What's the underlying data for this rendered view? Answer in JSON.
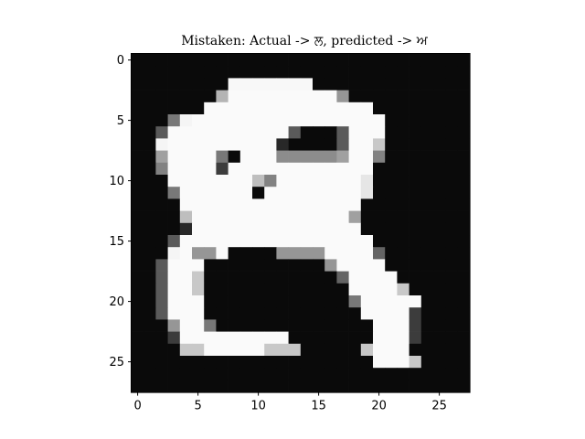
{
  "chart_data": {
    "type": "heatmap",
    "title": "Mistaken: Actual -> ਲ, predicted -> ਅ",
    "xlabel": "",
    "ylabel": "",
    "colormap": "gray",
    "value_range": [
      0,
      255
    ],
    "shape": [
      28,
      28
    ],
    "xlim": [
      -0.5,
      27.5
    ],
    "ylim": [
      27.5,
      -0.5
    ],
    "x_ticks": [
      0,
      5,
      10,
      15,
      20,
      25
    ],
    "y_ticks": [
      0,
      5,
      10,
      15,
      20,
      25
    ],
    "grid": false,
    "rows": [
      [
        10,
        10,
        10,
        10,
        10,
        10,
        10,
        10,
        10,
        10,
        10,
        10,
        10,
        10,
        10,
        10,
        10,
        10,
        10,
        10,
        10,
        10,
        10,
        10,
        10,
        10,
        10,
        10
      ],
      [
        10,
        10,
        10,
        10,
        10,
        10,
        10,
        10,
        10,
        10,
        10,
        10,
        10,
        10,
        10,
        10,
        10,
        10,
        10,
        10,
        10,
        10,
        10,
        10,
        10,
        10,
        10,
        10
      ],
      [
        10,
        10,
        10,
        10,
        10,
        10,
        10,
        10,
        248,
        248,
        248,
        248,
        248,
        248,
        248,
        10,
        10,
        10,
        10,
        10,
        10,
        10,
        10,
        10,
        10,
        10,
        10,
        10
      ],
      [
        10,
        10,
        10,
        10,
        10,
        10,
        10,
        180,
        250,
        250,
        250,
        250,
        250,
        250,
        250,
        250,
        250,
        150,
        10,
        10,
        10,
        10,
        10,
        10,
        10,
        10,
        10,
        10
      ],
      [
        10,
        10,
        10,
        10,
        10,
        10,
        250,
        250,
        250,
        250,
        250,
        250,
        250,
        250,
        250,
        250,
        250,
        250,
        250,
        250,
        10,
        10,
        10,
        10,
        10,
        10,
        10,
        10
      ],
      [
        10,
        10,
        10,
        120,
        245,
        250,
        250,
        250,
        250,
        250,
        250,
        250,
        250,
        250,
        250,
        250,
        250,
        250,
        250,
        250,
        250,
        10,
        10,
        10,
        10,
        10,
        10,
        10
      ],
      [
        10,
        10,
        90,
        250,
        250,
        250,
        250,
        250,
        250,
        250,
        250,
        250,
        250,
        90,
        10,
        10,
        10,
        90,
        250,
        250,
        250,
        10,
        10,
        10,
        10,
        10,
        10,
        10
      ],
      [
        10,
        10,
        245,
        250,
        250,
        250,
        250,
        250,
        250,
        250,
        250,
        250,
        40,
        10,
        10,
        10,
        10,
        90,
        250,
        250,
        200,
        10,
        10,
        10,
        10,
        10,
        10,
        10
      ],
      [
        10,
        10,
        160,
        250,
        250,
        250,
        250,
        120,
        10,
        250,
        250,
        250,
        140,
        140,
        140,
        140,
        140,
        160,
        250,
        250,
        130,
        10,
        10,
        10,
        10,
        10,
        10,
        10
      ],
      [
        10,
        10,
        130,
        250,
        250,
        250,
        250,
        60,
        250,
        250,
        250,
        250,
        250,
        250,
        250,
        250,
        250,
        250,
        250,
        250,
        10,
        10,
        10,
        10,
        10,
        10,
        10,
        10
      ],
      [
        10,
        10,
        10,
        250,
        250,
        250,
        250,
        250,
        250,
        250,
        190,
        130,
        250,
        250,
        250,
        250,
        250,
        250,
        250,
        230,
        10,
        10,
        10,
        10,
        10,
        10,
        10,
        10
      ],
      [
        10,
        10,
        10,
        120,
        250,
        250,
        250,
        250,
        250,
        250,
        10,
        250,
        250,
        250,
        250,
        250,
        250,
        250,
        250,
        230,
        10,
        10,
        10,
        10,
        10,
        10,
        10,
        10
      ],
      [
        10,
        10,
        10,
        10,
        250,
        250,
        250,
        250,
        250,
        250,
        250,
        250,
        250,
        250,
        250,
        250,
        250,
        250,
        250,
        10,
        10,
        10,
        10,
        10,
        10,
        10,
        10,
        10
      ],
      [
        10,
        10,
        10,
        10,
        190,
        250,
        250,
        250,
        250,
        250,
        250,
        250,
        250,
        250,
        250,
        250,
        250,
        250,
        160,
        10,
        10,
        10,
        10,
        10,
        10,
        10,
        10,
        10
      ],
      [
        10,
        10,
        10,
        10,
        40,
        250,
        250,
        250,
        250,
        250,
        250,
        250,
        250,
        250,
        250,
        250,
        250,
        250,
        250,
        10,
        10,
        10,
        10,
        10,
        10,
        10,
        10,
        10
      ],
      [
        10,
        10,
        10,
        90,
        250,
        250,
        250,
        250,
        250,
        250,
        250,
        250,
        250,
        250,
        250,
        250,
        250,
        250,
        250,
        250,
        10,
        10,
        10,
        10,
        10,
        10,
        10,
        10
      ],
      [
        10,
        10,
        10,
        245,
        250,
        150,
        150,
        250,
        10,
        10,
        10,
        10,
        150,
        150,
        150,
        150,
        250,
        250,
        250,
        250,
        100,
        10,
        10,
        10,
        10,
        10,
        10,
        10
      ],
      [
        10,
        10,
        90,
        250,
        250,
        250,
        10,
        10,
        10,
        10,
        10,
        10,
        10,
        10,
        10,
        10,
        150,
        250,
        250,
        250,
        250,
        10,
        10,
        10,
        10,
        10,
        10,
        10
      ],
      [
        10,
        10,
        90,
        250,
        250,
        200,
        10,
        10,
        10,
        10,
        10,
        10,
        10,
        10,
        10,
        10,
        10,
        100,
        250,
        250,
        250,
        250,
        10,
        10,
        10,
        10,
        10,
        10
      ],
      [
        10,
        10,
        90,
        250,
        250,
        200,
        10,
        10,
        10,
        10,
        10,
        10,
        10,
        10,
        10,
        10,
        10,
        10,
        250,
        250,
        250,
        250,
        200,
        10,
        10,
        10,
        10,
        10
      ],
      [
        10,
        10,
        90,
        250,
        250,
        250,
        10,
        10,
        10,
        10,
        10,
        10,
        10,
        10,
        10,
        10,
        10,
        10,
        120,
        250,
        250,
        250,
        250,
        250,
        10,
        10,
        10,
        10
      ],
      [
        10,
        10,
        90,
        250,
        250,
        250,
        10,
        10,
        10,
        10,
        10,
        10,
        10,
        10,
        10,
        10,
        10,
        10,
        10,
        250,
        250,
        250,
        250,
        60,
        10,
        10,
        10,
        10
      ],
      [
        10,
        10,
        10,
        150,
        250,
        250,
        120,
        10,
        10,
        10,
        10,
        10,
        10,
        10,
        10,
        10,
        10,
        10,
        10,
        10,
        250,
        250,
        250,
        60,
        10,
        10,
        10,
        10
      ],
      [
        10,
        10,
        10,
        60,
        250,
        250,
        250,
        250,
        250,
        250,
        250,
        250,
        250,
        10,
        10,
        10,
        10,
        10,
        10,
        10,
        250,
        250,
        250,
        60,
        10,
        10,
        10,
        10
      ],
      [
        10,
        10,
        10,
        10,
        200,
        200,
        250,
        250,
        250,
        250,
        250,
        200,
        200,
        200,
        10,
        10,
        10,
        10,
        10,
        200,
        250,
        250,
        250,
        10,
        10,
        10,
        10,
        10
      ],
      [
        10,
        10,
        10,
        10,
        10,
        10,
        10,
        10,
        10,
        10,
        10,
        10,
        10,
        10,
        10,
        10,
        10,
        10,
        10,
        10,
        250,
        250,
        250,
        200,
        10,
        10,
        10,
        10
      ],
      [
        10,
        10,
        10,
        10,
        10,
        10,
        10,
        10,
        10,
        10,
        10,
        10,
        10,
        10,
        10,
        10,
        10,
        10,
        10,
        10,
        10,
        10,
        10,
        10,
        10,
        10,
        10,
        10
      ],
      [
        10,
        10,
        10,
        10,
        10,
        10,
        10,
        10,
        10,
        10,
        10,
        10,
        10,
        10,
        10,
        10,
        10,
        10,
        10,
        10,
        10,
        10,
        10,
        10,
        10,
        10,
        10,
        10
      ]
    ]
  }
}
